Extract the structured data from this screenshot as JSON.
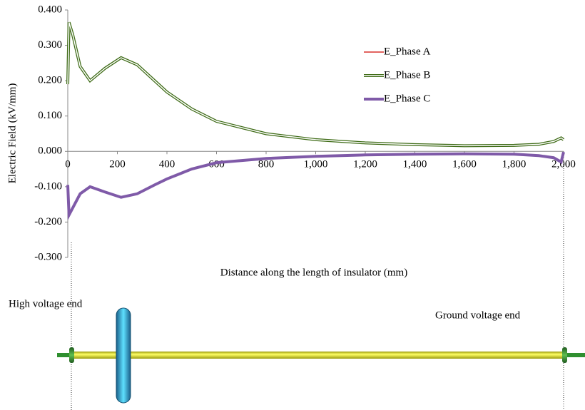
{
  "chart_data": {
    "type": "line",
    "x_label": "Distance along the length of insulator (mm)",
    "y_label": "Electric Field (kV/mm)",
    "x": [
      0,
      5,
      20,
      50,
      90,
      150,
      215,
      280,
      350,
      400,
      500,
      600,
      800,
      1000,
      1200,
      1400,
      1600,
      1800,
      1900,
      1960,
      1990,
      2000
    ],
    "series": [
      {
        "name": "E_Phase A",
        "color": "#d9312b",
        "values": [
          0.19,
          0.365,
          0.33,
          0.24,
          0.2,
          0.235,
          0.265,
          0.245,
          0.2,
          0.168,
          0.12,
          0.085,
          0.05,
          0.033,
          0.024,
          0.019,
          0.016,
          0.017,
          0.02,
          0.028,
          0.038,
          0.033
        ]
      },
      {
        "name": "E_Phase B",
        "color": "#3e6b16",
        "values": [
          0.19,
          0.365,
          0.33,
          0.24,
          0.2,
          0.235,
          0.265,
          0.245,
          0.2,
          0.168,
          0.12,
          0.085,
          0.05,
          0.033,
          0.024,
          0.019,
          0.016,
          0.017,
          0.02,
          0.028,
          0.038,
          0.033
        ]
      },
      {
        "name": "E_Phase C",
        "color": "#7f5aa8",
        "values": [
          -0.095,
          -0.18,
          -0.16,
          -0.12,
          -0.1,
          -0.115,
          -0.13,
          -0.12,
          -0.095,
          -0.078,
          -0.05,
          -0.032,
          -0.02,
          -0.014,
          -0.01,
          -0.008,
          -0.007,
          -0.008,
          -0.012,
          -0.018,
          -0.03,
          -0.002
        ]
      }
    ],
    "xlim": [
      0,
      2000
    ],
    "xticks": [
      0,
      200,
      400,
      600,
      800,
      {
        "value": 1000,
        "label": "1,000"
      },
      {
        "value": 1200,
        "label": "1,200"
      },
      {
        "value": 1400,
        "label": "1,400"
      },
      {
        "value": 1600,
        "label": "1,600"
      },
      {
        "value": 1800,
        "label": "1,800"
      },
      {
        "value": 2000,
        "label": "2,000"
      }
    ],
    "ylim": [
      -0.3,
      0.4
    ],
    "yticks": [
      {
        "value": -0.3,
        "label": "-0.300"
      },
      {
        "value": -0.2,
        "label": "-0.200"
      },
      {
        "value": -0.1,
        "label": "-0.100"
      },
      {
        "value": 0,
        "label": "0.000"
      },
      {
        "value": 0.1,
        "label": "0.100"
      },
      {
        "value": 0.2,
        "label": "0.200"
      },
      {
        "value": 0.3,
        "label": "0.300"
      },
      {
        "value": 0.4,
        "label": "0.400"
      }
    ],
    "grid": false,
    "annotations": [
      "High voltage end",
      "Ground voltage end"
    ]
  }
}
